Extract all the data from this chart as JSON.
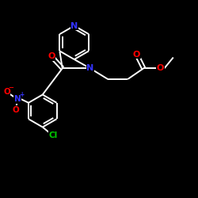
{
  "bg_color": "#000000",
  "bond_color": "#ffffff",
  "bond_lw": 1.4,
  "N_color": "#3333ff",
  "O_color": "#ff0000",
  "Cl_color": "#00cc00",
  "figsize": [
    2.5,
    2.5
  ],
  "dpi": 100,
  "xlim": [
    0,
    10
  ],
  "ylim": [
    0,
    10
  ]
}
